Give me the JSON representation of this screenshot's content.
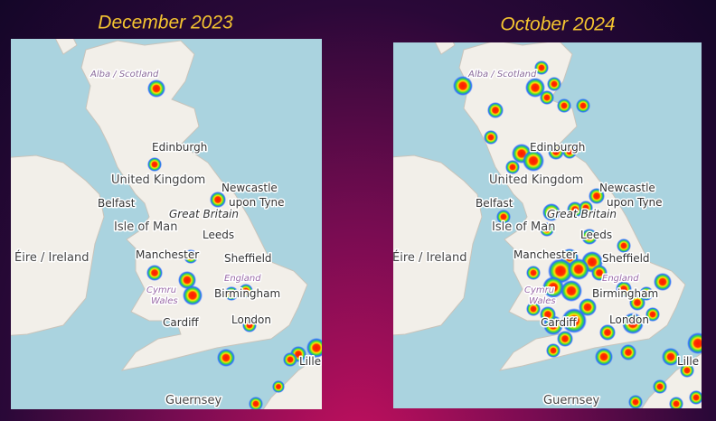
{
  "panels": [
    {
      "title": "December 2023",
      "labels": [
        "Alba / Scotland",
        "Edinburgh",
        "United Kingdom",
        "Newcastle",
        "upon Tyne",
        "Belfast",
        "Great Britain",
        "Isle of Man",
        "Leeds",
        "Éire / Ireland",
        "Manchester",
        "Sheffield",
        "England",
        "Cymru",
        "Wales",
        "Birmingham",
        "Cardiff",
        "London",
        "Lille",
        "Guernsey"
      ]
    },
    {
      "title": "October 2024",
      "labels": [
        "Alba / Scotland",
        "Edinburgh",
        "United Kingdom",
        "Newcastle",
        "upon Tyne",
        "Belfast",
        "Great Britain",
        "Isle of Man",
        "Leeds",
        "Éire / Ireland",
        "Manchester",
        "Sheffield",
        "England",
        "Cymru",
        "Wales",
        "Birmingham",
        "Cardiff",
        "London",
        "Lille",
        "Guernsey"
      ]
    }
  ]
}
